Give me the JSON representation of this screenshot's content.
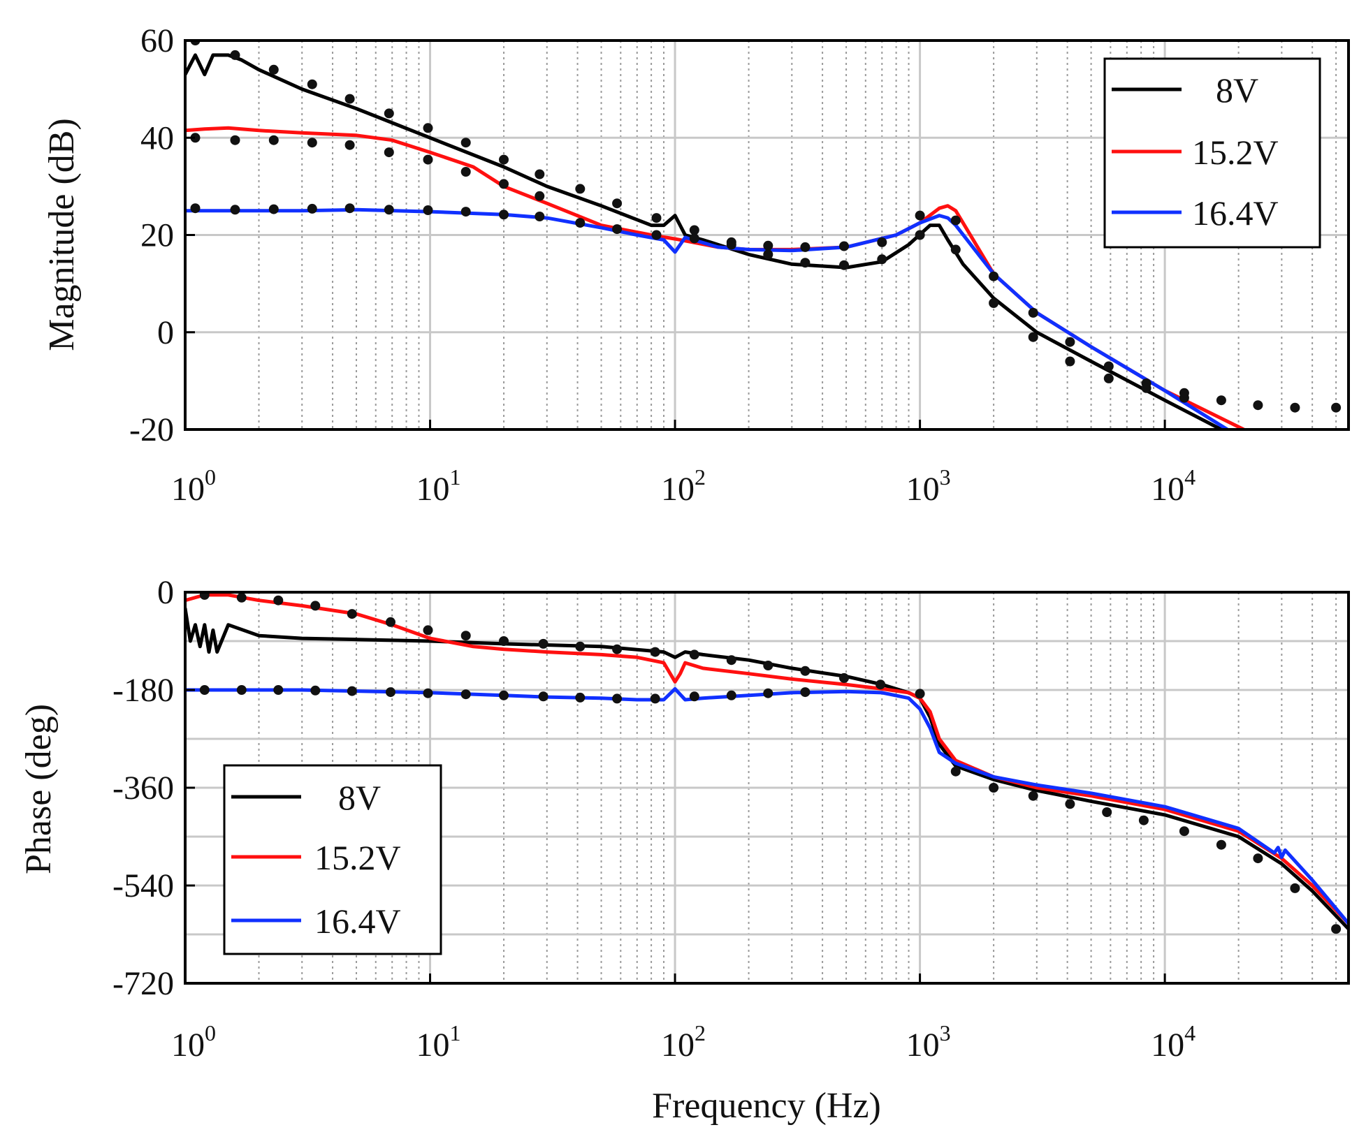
{
  "chart_data": [
    {
      "id": "magnitude",
      "type": "line",
      "xscale": "log",
      "xlim": [
        1,
        56234
      ],
      "ylim": [
        -20,
        60
      ],
      "yticks": [
        -20,
        0,
        20,
        40,
        60
      ],
      "ytick_labels": [
        "-20",
        "0",
        "20",
        "40",
        "60"
      ],
      "xtick_labels": [
        {
          "base": "10",
          "exp": "0"
        },
        {
          "base": "10",
          "exp": "1"
        },
        {
          "base": "10",
          "exp": "2"
        },
        {
          "base": "10",
          "exp": "3"
        },
        {
          "base": "10",
          "exp": "4"
        }
      ],
      "xlabel": "",
      "ylabel": "Magnitude (dB)",
      "grid": true,
      "legend_position": "top-right",
      "series": [
        {
          "name": "8V",
          "color": "#000000",
          "line_x": [
            1,
            1.1,
            1.2,
            1.3,
            1.5,
            1.7,
            2,
            3,
            5,
            10,
            20,
            30,
            50,
            80,
            90,
            100,
            110,
            130,
            200,
            300,
            500,
            700,
            900,
            1100,
            1200,
            1300,
            1500,
            2000,
            3000,
            5000,
            10000,
            17000
          ],
          "line_y": [
            53,
            57,
            53,
            57,
            57,
            56,
            54,
            50,
            46,
            40,
            34,
            30,
            26,
            22,
            22,
            24,
            20,
            19,
            16,
            14,
            13.3,
            14.5,
            18,
            22,
            22,
            19,
            14,
            7,
            0,
            -6,
            -14,
            -20
          ],
          "marker_x": [
            1.1,
            1.6,
            2.3,
            3.3,
            4.7,
            6.8,
            9.8,
            14,
            20,
            28,
            41,
            58,
            84,
            120,
            170,
            240,
            340,
            490,
            700,
            1000,
            1400,
            2000,
            2900,
            4100,
            5900,
            8400,
            12000
          ],
          "marker_y": [
            60,
            57,
            54,
            51,
            48,
            45,
            42,
            39,
            35.5,
            32.5,
            29.5,
            26.5,
            23.5,
            21,
            18,
            16,
            14.3,
            13.8,
            15,
            24,
            17,
            6,
            -1,
            -6,
            -9.5,
            -11.5,
            -13.5
          ]
        },
        {
          "name": "15.2V",
          "color": "#ff1010",
          "line_x": [
            1,
            1.2,
            1.5,
            2,
            3,
            5,
            7,
            10,
            15,
            20,
            30,
            50,
            80,
            100,
            150,
            200,
            300,
            500,
            800,
            1000,
            1200,
            1300,
            1400,
            2000,
            3000,
            5000,
            10000,
            21000
          ],
          "line_y": [
            41.5,
            41.8,
            42,
            41.5,
            41,
            40.5,
            39.5,
            37,
            34,
            30,
            26.5,
            22,
            20,
            19.2,
            17.5,
            17,
            17,
            17.5,
            20,
            22.5,
            25.5,
            26,
            25,
            12,
            4,
            -3,
            -12,
            -20
          ],
          "marker_x": [
            1.1,
            1.6,
            2.3,
            3.3,
            4.7,
            6.8,
            9.8,
            14,
            20,
            28
          ],
          "marker_y": [
            40,
            39.5,
            39.5,
            39,
            38.5,
            37,
            35.5,
            33,
            30.5,
            28
          ]
        },
        {
          "name": "16.4V",
          "color": "#1030ff",
          "line_x": [
            1,
            2,
            3,
            5,
            10,
            20,
            30,
            50,
            70,
            90,
            100,
            110,
            150,
            200,
            300,
            500,
            800,
            1000,
            1200,
            1300,
            1400,
            2000,
            3000,
            5000,
            10000,
            18000
          ],
          "line_y": [
            25,
            25,
            25,
            25.2,
            24.8,
            24.2,
            23.5,
            21.5,
            20,
            19,
            16.5,
            19.5,
            17.5,
            17,
            16.8,
            17.5,
            20,
            22.5,
            24,
            23.5,
            22,
            12,
            4,
            -3,
            -12,
            -20
          ],
          "marker_x": [
            1.1,
            1.6,
            2.3,
            3.3,
            4.7,
            6.8,
            9.8,
            14,
            20,
            28,
            41,
            58,
            84,
            120,
            170,
            240,
            340,
            490,
            700,
            1000,
            1400,
            2000,
            2900,
            4100,
            5900,
            8400,
            12000,
            17000,
            24000,
            34000,
            50000
          ],
          "marker_y": [
            25.5,
            25.2,
            25.3,
            25.4,
            25.5,
            25.2,
            25.1,
            24.8,
            24.2,
            23.8,
            22.5,
            21.2,
            20,
            19.3,
            18.5,
            17.8,
            17.5,
            17.7,
            18.5,
            20,
            23,
            11.5,
            4,
            -2,
            -7,
            -10.5,
            -12.5,
            -14,
            -15,
            -15.5,
            -15.5
          ]
        }
      ]
    },
    {
      "id": "phase",
      "type": "line",
      "xscale": "log",
      "xlim": [
        1,
        56234
      ],
      "ylim": [
        -720,
        0
      ],
      "yticks": [
        -720,
        -540,
        -360,
        -180,
        0
      ],
      "ytick_labels": [
        "-720",
        "-540",
        "-360",
        "-180",
        "0"
      ],
      "xtick_labels": [
        {
          "base": "10",
          "exp": "0"
        },
        {
          "base": "10",
          "exp": "1"
        },
        {
          "base": "10",
          "exp": "2"
        },
        {
          "base": "10",
          "exp": "3"
        },
        {
          "base": "10",
          "exp": "4"
        }
      ],
      "xlabel": "Frequency (Hz)",
      "ylabel": "Phase (deg)",
      "grid": true,
      "legend_position": "bottom-left",
      "series": [
        {
          "name": "8V",
          "color": "#000000",
          "line_x": [
            1,
            1.05,
            1.1,
            1.15,
            1.2,
            1.25,
            1.3,
            1.35,
            1.5,
            2,
            3,
            5,
            10,
            20,
            50,
            90,
            100,
            110,
            130,
            200,
            300,
            500,
            700,
            900,
            1000,
            1100,
            1200,
            1400,
            2000,
            3000,
            5000,
            10000,
            20000,
            30000,
            40000,
            56234
          ],
          "line_y": [
            -30,
            -90,
            -60,
            -100,
            -60,
            -110,
            -70,
            -110,
            -60,
            -80,
            -85,
            -87,
            -90,
            -95,
            -100,
            -110,
            -120,
            -110,
            -115,
            -125,
            -140,
            -155,
            -170,
            -185,
            -195,
            -230,
            -280,
            -320,
            -345,
            -365,
            -385,
            -410,
            -450,
            -500,
            -550,
            -620
          ],
          "marker_x": [
            1.2,
            1.7,
            2.4,
            3.4,
            4.8,
            6.9,
            9.8,
            14,
            20,
            29,
            41,
            58,
            83,
            120,
            170,
            240,
            340,
            490,
            690,
            1000,
            1400,
            2000,
            2900,
            4100,
            5800,
            8200,
            12000,
            17000,
            24000,
            34000,
            50000
          ],
          "marker_y": [
            -5,
            -10,
            -15,
            -25,
            -40,
            -55,
            -70,
            -80,
            -90,
            -95,
            -100,
            -105,
            -110,
            -115,
            -125,
            -135,
            -145,
            -158,
            -170,
            -187,
            -330,
            -360,
            -375,
            -390,
            -405,
            -420,
            -440,
            -465,
            -490,
            -545,
            -620
          ]
        },
        {
          "name": "15.2V",
          "color": "#ff1010",
          "line_x": [
            1,
            1.2,
            1.5,
            2,
            3,
            5,
            7,
            10,
            15,
            20,
            30,
            50,
            70,
            90,
            100,
            105,
            110,
            130,
            200,
            300,
            500,
            700,
            900,
            1000,
            1100,
            1200,
            1400,
            2000,
            3000,
            5000,
            10000,
            20000,
            30000,
            40000,
            56234
          ],
          "line_y": [
            -15,
            -5,
            -5,
            -15,
            -25,
            -40,
            -60,
            -85,
            -100,
            -105,
            -110,
            -115,
            -120,
            -130,
            -165,
            -150,
            -130,
            -140,
            -150,
            -160,
            -170,
            -178,
            -185,
            -195,
            -220,
            -270,
            -310,
            -340,
            -360,
            -375,
            -400,
            -440,
            -490,
            -540,
            -610
          ],
          "marker_x": [],
          "marker_y": []
        },
        {
          "name": "16.4V",
          "color": "#1030ff",
          "line_x": [
            1,
            2,
            3,
            5,
            10,
            20,
            30,
            50,
            70,
            90,
            100,
            110,
            130,
            200,
            300,
            500,
            700,
            900,
            1000,
            1100,
            1200,
            1400,
            2000,
            3000,
            5000,
            10000,
            20000,
            28000,
            29000,
            30000,
            31000,
            40000,
            56234
          ],
          "line_y": [
            -180,
            -180,
            -180,
            -182,
            -185,
            -190,
            -193,
            -195,
            -198,
            -198,
            -178,
            -198,
            -195,
            -190,
            -185,
            -183,
            -185,
            -195,
            -215,
            -250,
            -295,
            -315,
            -340,
            -355,
            -370,
            -395,
            -435,
            -480,
            -470,
            -488,
            -475,
            -530,
            -610
          ],
          "marker_x": [
            1.2,
            1.7,
            2.4,
            3.4,
            4.8,
            6.9,
            9.8,
            14,
            20,
            29,
            41,
            58,
            83,
            120,
            170,
            240,
            340
          ],
          "marker_y": [
            -180,
            -180,
            -180,
            -181,
            -182,
            -184,
            -186,
            -188,
            -190,
            -192,
            -194,
            -196,
            -196,
            -192,
            -190,
            -186,
            -184
          ]
        }
      ]
    }
  ]
}
